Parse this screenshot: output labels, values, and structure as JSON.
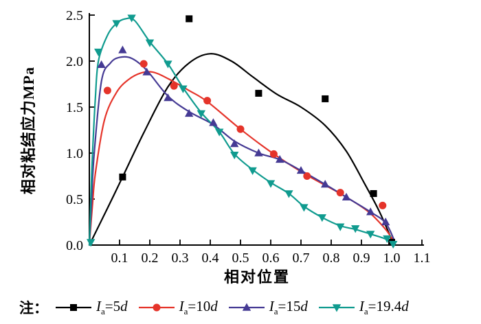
{
  "chart_data": {
    "type": "line",
    "title": "",
    "xlabel": "相对位置",
    "ylabel": "相对粘结应力MPa",
    "note_label": "注：",
    "background": "#ffffff",
    "axis_color": "#000000",
    "grid": false,
    "legend_position": "bottom",
    "xlim": [
      0,
      1.12
    ],
    "ylim": [
      0,
      2.5
    ],
    "x_ticks": [
      0.1,
      0.2,
      0.3,
      0.4,
      0.5,
      0.6,
      0.7,
      0.8,
      0.9,
      1.0,
      1.1
    ],
    "x_tick_labels": [
      "0.1",
      "0.2",
      "0.3",
      "0.4",
      "0.5",
      "0.6",
      "0.7",
      "0.8",
      "0.9",
      "1.0",
      "1.1"
    ],
    "y_ticks": [
      0.0,
      0.5,
      1.0,
      1.5,
      2.0,
      2.5
    ],
    "y_tick_labels": [
      "0.0",
      "0.5",
      "1.0",
      "1.5",
      "2.0",
      "2.5"
    ],
    "series": [
      {
        "name": "Ia=5d",
        "label_parts": {
          "symbol": "I",
          "subscript": "a",
          "eq": "=",
          "value": "5",
          "unit": "d"
        },
        "color": "#000000",
        "marker": "square",
        "markers": [
          [
            0.11,
            0.74
          ],
          [
            0.33,
            2.46
          ],
          [
            0.56,
            1.65
          ],
          [
            0.78,
            1.59
          ],
          [
            0.94,
            0.56
          ],
          [
            1.0,
            0.03
          ]
        ],
        "curve": [
          [
            0,
            0
          ],
          [
            0.06,
            0.4
          ],
          [
            0.11,
            0.74
          ],
          [
            0.18,
            1.22
          ],
          [
            0.26,
            1.72
          ],
          [
            0.33,
            1.98
          ],
          [
            0.4,
            2.08
          ],
          [
            0.47,
            2.0
          ],
          [
            0.54,
            1.83
          ],
          [
            0.62,
            1.64
          ],
          [
            0.7,
            1.5
          ],
          [
            0.78,
            1.3
          ],
          [
            0.85,
            1.02
          ],
          [
            0.91,
            0.67
          ],
          [
            0.96,
            0.36
          ],
          [
            1.005,
            0.02
          ]
        ]
      },
      {
        "name": "Ia=10d",
        "label_parts": {
          "symbol": "I",
          "subscript": "a",
          "eq": "=",
          "value": "10",
          "unit": "d"
        },
        "color": "#e5342a",
        "marker": "circle",
        "markers": [
          [
            0.06,
            1.68
          ],
          [
            0.18,
            1.97
          ],
          [
            0.28,
            1.73
          ],
          [
            0.39,
            1.57
          ],
          [
            0.5,
            1.26
          ],
          [
            0.61,
            0.99
          ],
          [
            0.72,
            0.75
          ],
          [
            0.83,
            0.57
          ],
          [
            0.97,
            0.43
          ]
        ],
        "curve": [
          [
            0,
            0
          ],
          [
            0.01,
            0.42
          ],
          [
            0.02,
            0.78
          ],
          [
            0.05,
            1.36
          ],
          [
            0.09,
            1.66
          ],
          [
            0.13,
            1.8
          ],
          [
            0.17,
            1.87
          ],
          [
            0.21,
            1.88
          ],
          [
            0.26,
            1.81
          ],
          [
            0.33,
            1.68
          ],
          [
            0.39,
            1.56
          ],
          [
            0.5,
            1.26
          ],
          [
            0.61,
            0.99
          ],
          [
            0.72,
            0.76
          ],
          [
            0.83,
            0.56
          ],
          [
            0.92,
            0.37
          ],
          [
            0.98,
            0.17
          ],
          [
            1.01,
            0.02
          ]
        ]
      },
      {
        "name": "Ia=15d",
        "label_parts": {
          "symbol": "I",
          "subscript": "a",
          "eq": "=",
          "value": "15",
          "unit": "d"
        },
        "color": "#453a94",
        "marker": "triangle-up",
        "markers": [
          [
            0.04,
            1.96
          ],
          [
            0.11,
            2.12
          ],
          [
            0.19,
            1.88
          ],
          [
            0.26,
            1.6
          ],
          [
            0.33,
            1.43
          ],
          [
            0.41,
            1.33
          ],
          [
            0.48,
            1.1
          ],
          [
            0.56,
            1.0
          ],
          [
            0.63,
            0.93
          ],
          [
            0.7,
            0.81
          ],
          [
            0.78,
            0.66
          ],
          [
            0.85,
            0.52
          ],
          [
            0.93,
            0.36
          ],
          [
            0.98,
            0.25
          ]
        ],
        "curve": [
          [
            0,
            0
          ],
          [
            0.008,
            0.5
          ],
          [
            0.015,
            0.95
          ],
          [
            0.04,
            1.78
          ],
          [
            0.07,
            1.98
          ],
          [
            0.1,
            2.04
          ],
          [
            0.14,
            2.03
          ],
          [
            0.19,
            1.9
          ],
          [
            0.26,
            1.62
          ],
          [
            0.33,
            1.45
          ],
          [
            0.41,
            1.31
          ],
          [
            0.48,
            1.13
          ],
          [
            0.56,
            1.0
          ],
          [
            0.63,
            0.93
          ],
          [
            0.7,
            0.81
          ],
          [
            0.78,
            0.66
          ],
          [
            0.85,
            0.52
          ],
          [
            0.93,
            0.36
          ],
          [
            0.98,
            0.24
          ],
          [
            1.01,
            0.04
          ]
        ]
      },
      {
        "name": "Ia=19.4d",
        "label_parts": {
          "symbol": "I",
          "subscript": "a",
          "eq": "=",
          "value": "19.4",
          "unit": "d"
        },
        "color": "#109b8f",
        "marker": "triangle-down",
        "markers": [
          [
            0.005,
            0.03
          ],
          [
            0.03,
            2.1
          ],
          [
            0.09,
            2.41
          ],
          [
            0.14,
            2.47
          ],
          [
            0.2,
            2.2
          ],
          [
            0.26,
            1.97
          ],
          [
            0.31,
            1.7
          ],
          [
            0.37,
            1.43
          ],
          [
            0.43,
            1.23
          ],
          [
            0.48,
            0.98
          ],
          [
            0.54,
            0.81
          ],
          [
            0.6,
            0.67
          ],
          [
            0.66,
            0.56
          ],
          [
            0.71,
            0.41
          ],
          [
            0.77,
            0.3
          ],
          [
            0.83,
            0.2
          ],
          [
            0.88,
            0.18
          ],
          [
            0.93,
            0.12
          ],
          [
            0.985,
            0.07
          ],
          [
            1.005,
            0.01
          ]
        ],
        "curve": [
          [
            0,
            0
          ],
          [
            0.005,
            0.5
          ],
          [
            0.01,
            0.95
          ],
          [
            0.02,
            1.6
          ],
          [
            0.03,
            2.0
          ],
          [
            0.06,
            2.28
          ],
          [
            0.09,
            2.41
          ],
          [
            0.12,
            2.46
          ],
          [
            0.15,
            2.44
          ],
          [
            0.2,
            2.21
          ],
          [
            0.26,
            1.97
          ],
          [
            0.31,
            1.71
          ],
          [
            0.37,
            1.44
          ],
          [
            0.43,
            1.23
          ],
          [
            0.48,
            0.99
          ],
          [
            0.54,
            0.82
          ],
          [
            0.6,
            0.68
          ],
          [
            0.66,
            0.56
          ],
          [
            0.71,
            0.42
          ],
          [
            0.77,
            0.3
          ],
          [
            0.83,
            0.21
          ],
          [
            0.88,
            0.17
          ],
          [
            0.93,
            0.12
          ],
          [
            0.985,
            0.06
          ],
          [
            1.005,
            0.01
          ]
        ]
      }
    ]
  }
}
